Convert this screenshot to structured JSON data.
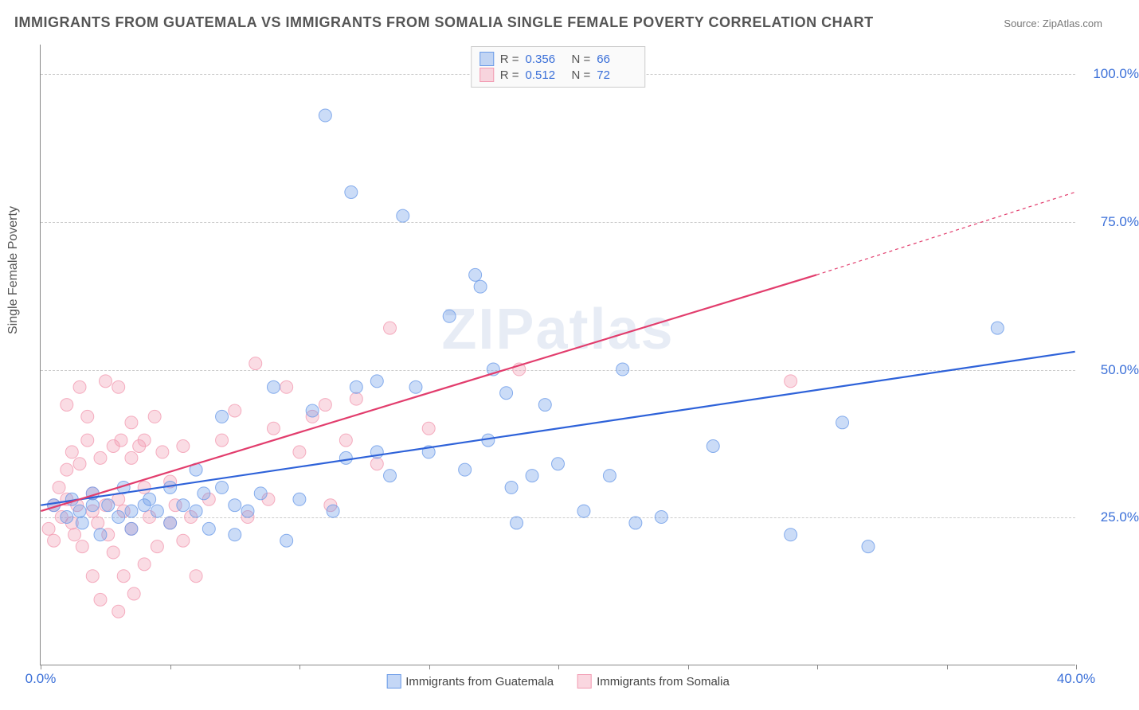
{
  "title": "IMMIGRANTS FROM GUATEMALA VS IMMIGRANTS FROM SOMALIA SINGLE FEMALE POVERTY CORRELATION CHART",
  "source_label": "Source:",
  "source_name": "ZipAtlas.com",
  "ylabel": "Single Female Poverty",
  "watermark": "ZIPatlas",
  "chart": {
    "type": "scatter",
    "xlim": [
      0,
      40
    ],
    "ylim": [
      0,
      105
    ],
    "xticks": [
      0,
      5,
      10,
      15,
      20,
      25,
      30,
      35,
      40
    ],
    "xtick_labels": {
      "0": "0.0%",
      "40": "40.0%"
    },
    "yticks": [
      25,
      50,
      75,
      100
    ],
    "ytick_labels": [
      "25.0%",
      "50.0%",
      "75.0%",
      "100.0%"
    ],
    "background_color": "#ffffff",
    "grid_color": "#cccccc",
    "axis_color": "#888888",
    "label_color": "#3a6fd8",
    "marker_radius": 8,
    "marker_fill_opacity": 0.35,
    "marker_stroke_opacity": 0.8,
    "line_width": 2.2,
    "series": [
      {
        "name": "Immigrants from Guatemala",
        "color": "#6b9be8",
        "line_color": "#2e62d9",
        "R": "0.356",
        "N": "66",
        "trend": {
          "x1": 0,
          "y1": 27,
          "x2": 40,
          "y2": 53
        },
        "points": [
          [
            0.5,
            27
          ],
          [
            1,
            25
          ],
          [
            1.2,
            28
          ],
          [
            1.5,
            26
          ],
          [
            1.6,
            24
          ],
          [
            2,
            27
          ],
          [
            2,
            29
          ],
          [
            2.3,
            22
          ],
          [
            2.6,
            27
          ],
          [
            3,
            25
          ],
          [
            3.2,
            30
          ],
          [
            3.5,
            26
          ],
          [
            3.5,
            23
          ],
          [
            4,
            27
          ],
          [
            4.2,
            28
          ],
          [
            4.5,
            26
          ],
          [
            5,
            30
          ],
          [
            5,
            24
          ],
          [
            5.5,
            27
          ],
          [
            6,
            26
          ],
          [
            6,
            33
          ],
          [
            6.3,
            29
          ],
          [
            6.5,
            23
          ],
          [
            7,
            42
          ],
          [
            7,
            30
          ],
          [
            7.5,
            27
          ],
          [
            7.5,
            22
          ],
          [
            8,
            26
          ],
          [
            8.5,
            29
          ],
          [
            9,
            47
          ],
          [
            9.5,
            21
          ],
          [
            10,
            28
          ],
          [
            10.5,
            43
          ],
          [
            11,
            93
          ],
          [
            11.3,
            26
          ],
          [
            11.8,
            35
          ],
          [
            12,
            80
          ],
          [
            12.2,
            47
          ],
          [
            13,
            48
          ],
          [
            13,
            36
          ],
          [
            13.5,
            32
          ],
          [
            14,
            76
          ],
          [
            14.5,
            47
          ],
          [
            15,
            36
          ],
          [
            15.8,
            59
          ],
          [
            16.4,
            33
          ],
          [
            16.8,
            66
          ],
          [
            17,
            64
          ],
          [
            17.3,
            38
          ],
          [
            17.5,
            50
          ],
          [
            18,
            46
          ],
          [
            18.2,
            30
          ],
          [
            18.4,
            24
          ],
          [
            19,
            32
          ],
          [
            19.5,
            44
          ],
          [
            20,
            34
          ],
          [
            21,
            26
          ],
          [
            22,
            32
          ],
          [
            22.5,
            50
          ],
          [
            23,
            24
          ],
          [
            24,
            25
          ],
          [
            26,
            37
          ],
          [
            29,
            22
          ],
          [
            31,
            41
          ],
          [
            32,
            20
          ],
          [
            37,
            57
          ]
        ]
      },
      {
        "name": "Immigrants from Somalia",
        "color": "#f29bb2",
        "line_color": "#e23d6d",
        "R": "0.512",
        "N": "72",
        "trend": {
          "x1": 0,
          "y1": 26,
          "x2": 30,
          "y2": 66
        },
        "trend_dashed": {
          "x1": 30,
          "y1": 66,
          "x2": 40,
          "y2": 80
        },
        "points": [
          [
            0.3,
            23
          ],
          [
            0.5,
            27
          ],
          [
            0.5,
            21
          ],
          [
            0.7,
            30
          ],
          [
            0.8,
            25
          ],
          [
            1,
            33
          ],
          [
            1,
            28
          ],
          [
            1,
            44
          ],
          [
            1.2,
            24
          ],
          [
            1.2,
            36
          ],
          [
            1.3,
            22
          ],
          [
            1.4,
            27
          ],
          [
            1.5,
            47
          ],
          [
            1.5,
            34
          ],
          [
            1.6,
            20
          ],
          [
            1.8,
            42
          ],
          [
            1.8,
            38
          ],
          [
            2,
            26
          ],
          [
            2,
            15
          ],
          [
            2,
            29
          ],
          [
            2.2,
            24
          ],
          [
            2.3,
            35
          ],
          [
            2.3,
            11
          ],
          [
            2.5,
            27
          ],
          [
            2.5,
            48
          ],
          [
            2.6,
            22
          ],
          [
            2.8,
            37
          ],
          [
            2.8,
            19
          ],
          [
            3,
            47
          ],
          [
            3,
            28
          ],
          [
            3,
            9
          ],
          [
            3.1,
            38
          ],
          [
            3.2,
            26
          ],
          [
            3.2,
            15
          ],
          [
            3.5,
            35
          ],
          [
            3.5,
            41
          ],
          [
            3.5,
            23
          ],
          [
            3.6,
            12
          ],
          [
            3.8,
            37
          ],
          [
            4,
            30
          ],
          [
            4,
            38
          ],
          [
            4,
            17
          ],
          [
            4.2,
            25
          ],
          [
            4.4,
            42
          ],
          [
            4.5,
            20
          ],
          [
            4.7,
            36
          ],
          [
            5,
            24
          ],
          [
            5,
            31
          ],
          [
            5.2,
            27
          ],
          [
            5.5,
            21
          ],
          [
            5.5,
            37
          ],
          [
            5.8,
            25
          ],
          [
            6,
            15
          ],
          [
            6.5,
            28
          ],
          [
            7,
            38
          ],
          [
            7.5,
            43
          ],
          [
            8,
            25
          ],
          [
            8.3,
            51
          ],
          [
            8.8,
            28
          ],
          [
            9,
            40
          ],
          [
            9.5,
            47
          ],
          [
            10,
            36
          ],
          [
            10.5,
            42
          ],
          [
            11,
            44
          ],
          [
            11.2,
            27
          ],
          [
            11.8,
            38
          ],
          [
            12.2,
            45
          ],
          [
            13,
            34
          ],
          [
            13.5,
            57
          ],
          [
            15,
            40
          ],
          [
            18.5,
            50
          ],
          [
            29,
            48
          ]
        ]
      }
    ]
  },
  "legend_top": {
    "r_label": "R =",
    "n_label": "N ="
  },
  "legend_bottom_labels": [
    "Immigrants from Guatemala",
    "Immigrants from Somalia"
  ]
}
